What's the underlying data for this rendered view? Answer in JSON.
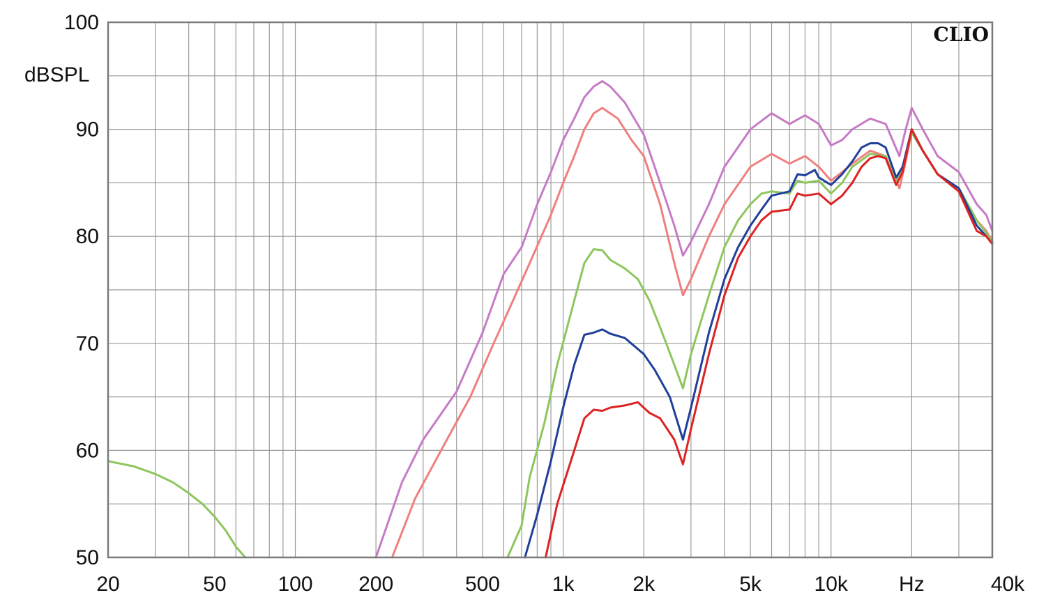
{
  "chart_data": {
    "type": "line",
    "brand_label": "CLIO",
    "ylabel": "dBSPL",
    "xlabel": "Hz",
    "x_scale": "log",
    "grid": true,
    "xlim": [
      20,
      40000
    ],
    "ylim": [
      50,
      100
    ],
    "y_ticks": [
      {
        "value": 50,
        "label": "50"
      },
      {
        "value": 60,
        "label": "60"
      },
      {
        "value": 70,
        "label": "70"
      },
      {
        "value": 80,
        "label": "80"
      },
      {
        "value": 90,
        "label": "90"
      },
      {
        "value": 100,
        "label": "100"
      }
    ],
    "x_ticks": [
      {
        "value": 20,
        "label": "20"
      },
      {
        "value": 50,
        "label": "50"
      },
      {
        "value": 100,
        "label": "100"
      },
      {
        "value": 200,
        "label": "200"
      },
      {
        "value": 500,
        "label": "500"
      },
      {
        "value": 1000,
        "label": "1k"
      },
      {
        "value": 2000,
        "label": "2k"
      },
      {
        "value": 5000,
        "label": "5k"
      },
      {
        "value": 10000,
        "label": "10k"
      },
      {
        "value": 40000,
        "label": "40k"
      }
    ],
    "series": [
      {
        "color": "#c67bc6",
        "points": [
          [
            200,
            50
          ],
          [
            250,
            57
          ],
          [
            300,
            61
          ],
          [
            400,
            65.5
          ],
          [
            500,
            71
          ],
          [
            600,
            76.5
          ],
          [
            700,
            79
          ],
          [
            800,
            83
          ],
          [
            900,
            86
          ],
          [
            1000,
            89
          ],
          [
            1100,
            91
          ],
          [
            1200,
            93
          ],
          [
            1300,
            94
          ],
          [
            1400,
            94.5
          ],
          [
            1500,
            94
          ],
          [
            1700,
            92.5
          ],
          [
            2000,
            89.5
          ],
          [
            2300,
            85
          ],
          [
            2600,
            81
          ],
          [
            2800,
            78.2
          ],
          [
            3000,
            79.5
          ],
          [
            3500,
            83
          ],
          [
            4000,
            86.5
          ],
          [
            5000,
            90
          ],
          [
            6000,
            91.5
          ],
          [
            7000,
            90.5
          ],
          [
            8000,
            91.3
          ],
          [
            9000,
            90.5
          ],
          [
            10000,
            88.5
          ],
          [
            11000,
            89
          ],
          [
            12000,
            90
          ],
          [
            14000,
            91
          ],
          [
            16000,
            90.5
          ],
          [
            18000,
            87.5
          ],
          [
            19000,
            90
          ],
          [
            20000,
            92
          ],
          [
            22000,
            90
          ],
          [
            25000,
            87.5
          ],
          [
            30000,
            86
          ],
          [
            35000,
            83
          ],
          [
            38000,
            82
          ],
          [
            40000,
            80.5
          ]
        ]
      },
      {
        "color": "#ef7f7f",
        "points": [
          [
            230,
            50
          ],
          [
            280,
            55.5
          ],
          [
            350,
            60
          ],
          [
            450,
            65
          ],
          [
            550,
            70
          ],
          [
            650,
            74
          ],
          [
            750,
            77.5
          ],
          [
            900,
            82
          ],
          [
            1000,
            85
          ],
          [
            1100,
            87.5
          ],
          [
            1200,
            90
          ],
          [
            1300,
            91.5
          ],
          [
            1400,
            92
          ],
          [
            1600,
            91
          ],
          [
            1800,
            89
          ],
          [
            2000,
            87.5
          ],
          [
            2300,
            83
          ],
          [
            2600,
            77.5
          ],
          [
            2800,
            74.5
          ],
          [
            3000,
            76
          ],
          [
            3500,
            80
          ],
          [
            4000,
            83
          ],
          [
            5000,
            86.5
          ],
          [
            6000,
            87.7
          ],
          [
            7000,
            86.8
          ],
          [
            8000,
            87.5
          ],
          [
            9000,
            86.5
          ],
          [
            10000,
            85.2
          ],
          [
            11000,
            86
          ],
          [
            12000,
            86.8
          ],
          [
            14000,
            88
          ],
          [
            16000,
            87.5
          ],
          [
            18000,
            84.5
          ],
          [
            19000,
            87
          ],
          [
            20000,
            89.7
          ],
          [
            22000,
            88
          ],
          [
            25000,
            85.8
          ],
          [
            30000,
            84.5
          ],
          [
            35000,
            81.5
          ],
          [
            38000,
            80.5
          ],
          [
            40000,
            79.5
          ]
        ]
      },
      {
        "color": "#8dc65d",
        "points": [
          [
            20,
            59
          ],
          [
            25,
            58.5
          ],
          [
            30,
            57.8
          ],
          [
            35,
            57
          ],
          [
            40,
            56
          ],
          [
            45,
            55
          ],
          [
            50,
            53.8
          ],
          [
            55,
            52.5
          ],
          [
            60,
            51
          ],
          [
            65,
            50
          ],
          [
            620,
            50
          ],
          [
            700,
            53
          ],
          [
            750,
            57.5
          ],
          [
            850,
            62.5
          ],
          [
            950,
            68
          ],
          [
            1100,
            74
          ],
          [
            1200,
            77.5
          ],
          [
            1300,
            78.8
          ],
          [
            1400,
            78.7
          ],
          [
            1500,
            77.8
          ],
          [
            1700,
            77
          ],
          [
            1900,
            76
          ],
          [
            2100,
            74
          ],
          [
            2300,
            71.5
          ],
          [
            2600,
            68
          ],
          [
            2800,
            65.8
          ],
          [
            3000,
            69
          ],
          [
            3500,
            74.5
          ],
          [
            4000,
            79
          ],
          [
            4500,
            81.5
          ],
          [
            5000,
            83
          ],
          [
            5500,
            84
          ],
          [
            6000,
            84.2
          ],
          [
            7000,
            84
          ],
          [
            7500,
            85.2
          ],
          [
            8000,
            85
          ],
          [
            9000,
            85.2
          ],
          [
            10000,
            84
          ],
          [
            11000,
            85
          ],
          [
            12000,
            86.5
          ],
          [
            14000,
            87.7
          ],
          [
            16000,
            87.5
          ],
          [
            17500,
            85
          ],
          [
            18500,
            86.5
          ],
          [
            20000,
            89.7
          ],
          [
            22000,
            88
          ],
          [
            25000,
            85.8
          ],
          [
            30000,
            84.5
          ],
          [
            35000,
            81.5
          ],
          [
            38000,
            80.3
          ],
          [
            40000,
            79.4
          ]
        ]
      },
      {
        "color": "#1f3f99",
        "points": [
          [
            720,
            50
          ],
          [
            800,
            54
          ],
          [
            900,
            59
          ],
          [
            1000,
            64
          ],
          [
            1100,
            68
          ],
          [
            1200,
            70.8
          ],
          [
            1300,
            71
          ],
          [
            1400,
            71.3
          ],
          [
            1500,
            70.9
          ],
          [
            1700,
            70.5
          ],
          [
            2000,
            69
          ],
          [
            2200,
            67.5
          ],
          [
            2500,
            65
          ],
          [
            2800,
            61
          ],
          [
            3000,
            64
          ],
          [
            3500,
            71
          ],
          [
            4000,
            76
          ],
          [
            4500,
            79
          ],
          [
            5000,
            81
          ],
          [
            5500,
            82.5
          ],
          [
            6000,
            83.8
          ],
          [
            7000,
            84.2
          ],
          [
            7500,
            85.8
          ],
          [
            8000,
            85.7
          ],
          [
            8700,
            86.2
          ],
          [
            9000,
            85.5
          ],
          [
            10000,
            84.8
          ],
          [
            11000,
            85.8
          ],
          [
            12000,
            87
          ],
          [
            13000,
            88.3
          ],
          [
            14000,
            88.7
          ],
          [
            15000,
            88.7
          ],
          [
            16000,
            88.3
          ],
          [
            17500,
            85.5
          ],
          [
            18500,
            86.5
          ],
          [
            20000,
            90
          ],
          [
            22000,
            88
          ],
          [
            25000,
            85.8
          ],
          [
            30000,
            84.5
          ],
          [
            35000,
            81
          ],
          [
            38000,
            80
          ],
          [
            40000,
            79.3
          ]
        ]
      },
      {
        "color": "#dd2222",
        "points": [
          [
            860,
            50
          ],
          [
            950,
            55
          ],
          [
            1100,
            60
          ],
          [
            1200,
            63
          ],
          [
            1300,
            63.8
          ],
          [
            1400,
            63.7
          ],
          [
            1500,
            64
          ],
          [
            1700,
            64.2
          ],
          [
            1900,
            64.5
          ],
          [
            2100,
            63.5
          ],
          [
            2300,
            63
          ],
          [
            2600,
            61
          ],
          [
            2800,
            58.7
          ],
          [
            3000,
            62
          ],
          [
            3500,
            69
          ],
          [
            4000,
            74.5
          ],
          [
            4500,
            78
          ],
          [
            5000,
            80
          ],
          [
            5500,
            81.5
          ],
          [
            6000,
            82.3
          ],
          [
            7000,
            82.5
          ],
          [
            7500,
            84
          ],
          [
            8000,
            83.8
          ],
          [
            9000,
            84
          ],
          [
            10000,
            83
          ],
          [
            11000,
            83.8
          ],
          [
            12000,
            85
          ],
          [
            13000,
            86.5
          ],
          [
            14000,
            87.3
          ],
          [
            15000,
            87.5
          ],
          [
            16000,
            87.3
          ],
          [
            17500,
            84.8
          ],
          [
            18500,
            86
          ],
          [
            20000,
            90
          ],
          [
            22000,
            88
          ],
          [
            25000,
            85.8
          ],
          [
            30000,
            84.2
          ],
          [
            35000,
            80.5
          ],
          [
            38000,
            80
          ],
          [
            40000,
            79.3
          ]
        ]
      }
    ]
  }
}
